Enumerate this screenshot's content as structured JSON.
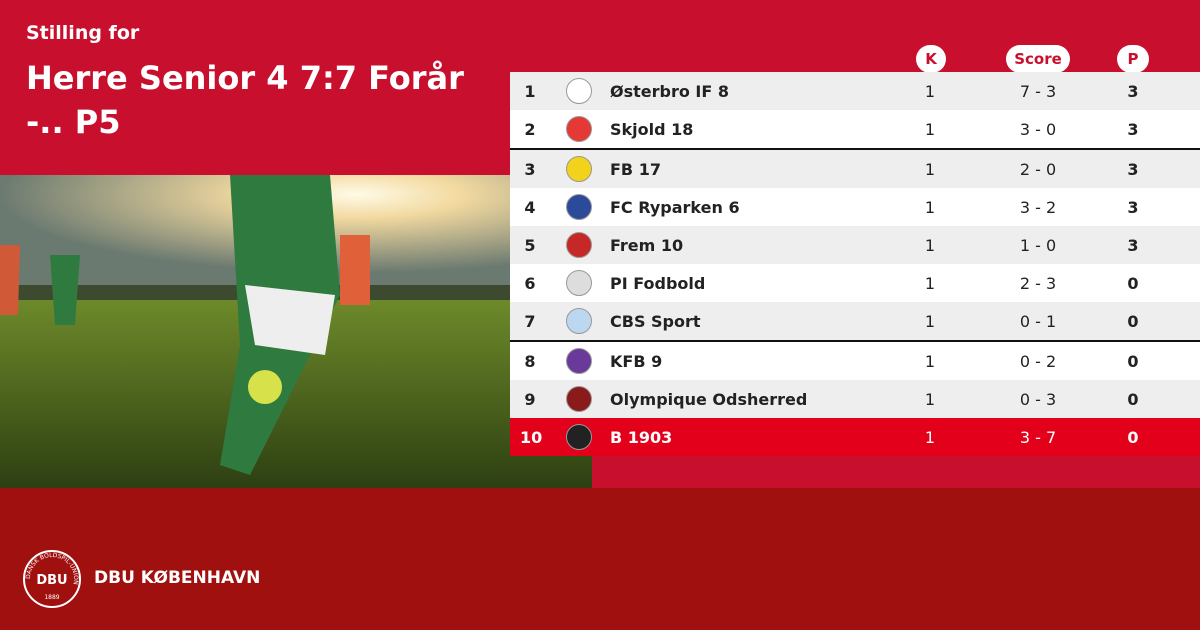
{
  "header": {
    "subtitle": "Stilling for",
    "title": "Herre Senior 4 7:7 Forår -.. P5"
  },
  "table": {
    "columns": [
      "K",
      "Score",
      "P"
    ],
    "rows": [
      [
        1,
        "Østerbro IF 8",
        1,
        "7 - 3",
        3
      ],
      [
        2,
        "Skjold 18",
        1,
        "3 - 0",
        3
      ],
      [
        3,
        "FB 17",
        1,
        "2 - 0",
        3
      ],
      [
        4,
        "FC Ryparken 6",
        1,
        "3 - 2",
        3
      ],
      [
        5,
        "Frem 10",
        1,
        "1 - 0",
        3
      ],
      [
        6,
        "PI Fodbold",
        1,
        "2 - 3",
        0
      ],
      [
        7,
        "CBS Sport",
        1,
        "0 - 1",
        0
      ],
      [
        8,
        "KFB 9",
        1,
        "0 - 2",
        0
      ],
      [
        9,
        "Olympique Odsherred",
        1,
        "0 - 3",
        0
      ],
      [
        10,
        "B 1903",
        1,
        "3 - 7",
        0
      ]
    ]
  },
  "footer": {
    "brand": "DBU KØBENHAVN",
    "logo_text": "DBU",
    "logo_ring": "DANSK BOLDSPIL-UNION",
    "logo_year": "1889"
  }
}
